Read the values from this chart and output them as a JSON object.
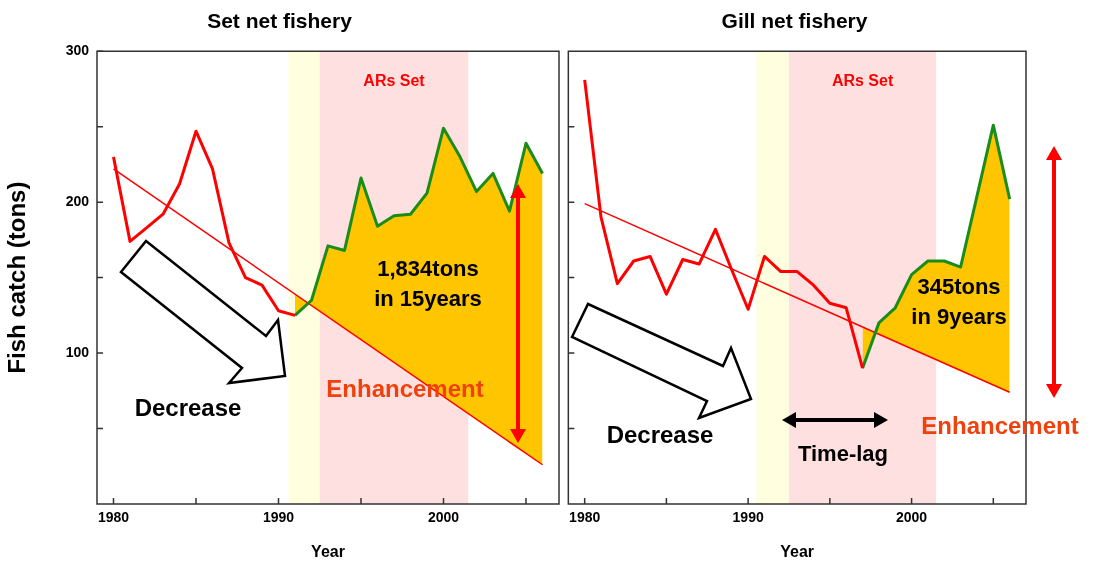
{
  "chart_data": [
    {
      "type": "line",
      "title": "Set net fishery",
      "xlabel": "Year",
      "ylabel": "Fish catch (tons)",
      "xlim": [
        1979,
        2007
      ],
      "xticks": [
        1980,
        {
          "value": 1985,
          "label": null
        },
        1990,
        {
          "value": 1995,
          "label": null
        },
        2000,
        {
          "value": 2005,
          "label": null
        }
      ],
      "ylim": [
        0,
        300
      ],
      "yticks": [
        {
          "value": 50,
          "label": null
        },
        100,
        {
          "value": 150,
          "label": null
        },
        200,
        {
          "value": 250,
          "label": null
        },
        300
      ],
      "marker": "none",
      "series": [
        {
          "color": "#ff0000",
          "x": [
            1980,
            1981,
            1982,
            1983,
            1984,
            1985,
            1986,
            1987,
            1988,
            1989,
            1990,
            1991
          ],
          "values": [
            230,
            174,
            183,
            192,
            212,
            247,
            222,
            173,
            150,
            145,
            128,
            125
          ]
        },
        {
          "color": "#1a8c1a",
          "x": [
            1991,
            1992,
            1993,
            1994,
            1995,
            1996,
            1997,
            1998,
            1999,
            2000,
            2001,
            2002,
            2003,
            2004,
            2005,
            2006
          ],
          "values": [
            125,
            135,
            171,
            168,
            216,
            184,
            191,
            192,
            206,
            249,
            230,
            207,
            219,
            194,
            239,
            219
          ],
          "lower": [
            139,
            132,
            124,
            116,
            109,
            101,
            94,
            86,
            79,
            71,
            64,
            56,
            49,
            41,
            34,
            26
          ],
          "upper": [
            125,
            135,
            171,
            168,
            216,
            184,
            191,
            192,
            206,
            249,
            230,
            207,
            219,
            194,
            239,
            219
          ]
        },
        {
          "type": "line",
          "color": "#ff0000",
          "x": [
            1980,
            2006
          ],
          "values": [
            222,
            26
          ]
        }
      ],
      "bands": [
        {
          "axis": "x",
          "from": 1990.6,
          "to": 1992.5,
          "color": "#ffffe0"
        },
        {
          "axis": "x",
          "from": 1992.5,
          "to": 2001.5,
          "label": "ARs Set",
          "color": "#ffe0e0"
        }
      ],
      "annotations": [
        "Decrease",
        "Enhancement",
        "1,834tons\nin 15years"
      ]
    },
    {
      "type": "line",
      "title": "Gill net fishery",
      "xlabel": "Year",
      "xlim": [
        1979,
        2007
      ],
      "xticks": [
        1980,
        {
          "value": 1985,
          "label": null
        },
        1990,
        {
          "value": 1995,
          "label": null
        },
        2000,
        {
          "value": 2005,
          "label": null
        }
      ],
      "ylim": [
        0,
        300
      ],
      "yticks": [
        50,
        100,
        150,
        200,
        250
      ],
      "tick_labels": "x",
      "marker": "none",
      "series": [
        {
          "color": "#ff0000",
          "x": [
            1980,
            1981,
            1982,
            1983,
            1984,
            1985,
            1986,
            1987,
            1988,
            1989,
            1990,
            1991,
            1992,
            1993,
            1994,
            1995,
            1996,
            1997
          ],
          "values": [
            281,
            190,
            146,
            161,
            164,
            139,
            162,
            159,
            182,
            155,
            129,
            164,
            154,
            154,
            145,
            133,
            130,
            90
          ]
        },
        {
          "color": "#1a8c1a",
          "x": [
            1997,
            1998,
            1999,
            2000,
            2001,
            2002,
            2003,
            2004,
            2005,
            2006
          ],
          "values": [
            90,
            120,
            130,
            152,
            161,
            161,
            157,
            204,
            251,
            202
          ],
          "lower": [
            117,
            112,
            108,
            103,
            98,
            93,
            88,
            84,
            79,
            74
          ],
          "upper": [
            90,
            120,
            130,
            152,
            161,
            161,
            157,
            204,
            251,
            202
          ]
        },
        {
          "type": "line",
          "color": "#ff0000",
          "x": [
            1980,
            2006
          ],
          "values": [
            199,
            74
          ]
        }
      ],
      "bands": [
        {
          "axis": "x",
          "from": 1990.5,
          "to": 1992.5,
          "color": "#ffffe0"
        },
        {
          "axis": "x",
          "from": 1992.5,
          "to": 2001.5,
          "label": "ARs Set",
          "color": "#ffe0e0"
        }
      ],
      "annotations": [
        "Decrease",
        "Enhancement",
        "345tons\nin 9years",
        "Time-lag"
      ]
    }
  ]
}
